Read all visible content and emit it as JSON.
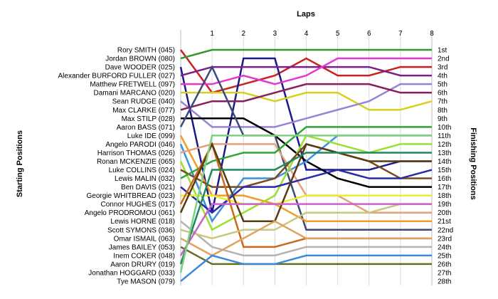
{
  "chart_data": {
    "type": "line",
    "title": "",
    "xlabel": "Laps",
    "ylabel_left": "Starting Positions",
    "ylabel_right": "Finishing Positions",
    "x": [
      0,
      1,
      2,
      3,
      4,
      5,
      6,
      7,
      8
    ],
    "lap_labels": [
      "1",
      "2",
      "3",
      "4",
      "5",
      "6",
      "7",
      "8"
    ],
    "position_labels": [
      "1st",
      "2nd",
      "3rd",
      "4th",
      "5th",
      "6th",
      "7th",
      "8th",
      "9th",
      "10th",
      "11th",
      "12th",
      "13th",
      "14th",
      "15th",
      "16th",
      "17th",
      "18th",
      "19th",
      "20th",
      "21st",
      "22nd",
      "23rd",
      "24th",
      "25th",
      "26th",
      "27th",
      "28th"
    ],
    "ylim": [
      1,
      28
    ],
    "y_inverted": true,
    "grid": true,
    "series": [
      {
        "name": "Rory SMITH (045)",
        "color": "#cc2020",
        "positions": [
          1,
          6,
          5,
          4,
          2,
          4,
          4,
          3,
          3
        ]
      },
      {
        "name": "Jordan BROWN (080)",
        "color": "#2e9a2e",
        "positions": [
          2,
          1,
          1,
          1,
          1,
          1,
          1,
          1,
          1
        ]
      },
      {
        "name": "Dave WOODER (025)",
        "color": "#1a1a8c",
        "positions": [
          3,
          20,
          2,
          2,
          15,
          15,
          15,
          14,
          14
        ]
      },
      {
        "name": "Alexander BURFORD FULLER (027)",
        "color": "#7a1f8a",
        "positions": [
          4,
          3,
          3,
          3,
          3,
          3,
          3,
          4,
          4
        ]
      },
      {
        "name": "Matthew FRETWELL (097)",
        "color": "#e23ad0",
        "positions": [
          5,
          5,
          4,
          5,
          4,
          2,
          2,
          2,
          2
        ]
      },
      {
        "name": "Damani MARCANO (020)",
        "color": "#d8d020",
        "positions": [
          6,
          6,
          6,
          7,
          6,
          6,
          8,
          8,
          7
        ]
      },
      {
        "name": "Sean RUDGE (040)",
        "color": "#9c82d6",
        "positions": [
          7,
          10,
          10,
          10,
          9,
          8,
          7,
          5,
          5
        ]
      },
      {
        "name": "Max CLARKE (077)",
        "color": "#8a1e5c",
        "positions": [
          8,
          7,
          7,
          6,
          5,
          5,
          5,
          6,
          6
        ]
      },
      {
        "name": "Max STILP (028)",
        "color": "#000000",
        "positions": [
          9,
          9,
          9,
          11,
          14,
          16,
          17,
          17,
          17
        ]
      },
      {
        "name": "Aaron BASS (071)",
        "color": "#3b4a78",
        "positions": [
          10,
          3,
          11,
          11,
          22,
          22,
          22,
          22,
          22
        ]
      },
      {
        "name": "Luke IDE (099)",
        "color": "#f09c2a",
        "positions": [
          11,
          18,
          18,
          19,
          21,
          21,
          21,
          21,
          21
        ]
      },
      {
        "name": "Angelo PARODI (046)",
        "color": "#3d8fe0",
        "positions": [
          12,
          21,
          16,
          16,
          14,
          11,
          11,
          11,
          11
        ]
      },
      {
        "name": "Harrison THOMAS (026)",
        "color": "#e6a07a",
        "positions": [
          13,
          12,
          12,
          12,
          18,
          18,
          20,
          20,
          20
        ]
      },
      {
        "name": "Ronan MCKENZIE (065)",
        "color": "#99e030",
        "positions": [
          14,
          22,
          20,
          18,
          11,
          12,
          13,
          12,
          12
        ]
      },
      {
        "name": "Luke COLLINS (024)",
        "color": "#7a4a1c",
        "positions": [
          15,
          17,
          17,
          16,
          12,
          13,
          14,
          16,
          16
        ]
      },
      {
        "name": "Lewis MALIN (032)",
        "color": "#2aa830",
        "positions": [
          16,
          14,
          13,
          13,
          10,
          10,
          10,
          10,
          10
        ]
      },
      {
        "name": "Ben DAVIS (021)",
        "color": "#2a2aa8",
        "positions": [
          17,
          20,
          17,
          17,
          16,
          15,
          16,
          16,
          15
        ]
      },
      {
        "name": "Georgie WHITBREAD (023)",
        "color": "#ecec30",
        "positions": [
          18,
          18,
          19,
          19,
          18,
          18,
          18,
          18,
          18
        ]
      },
      {
        "name": "Connor HUGHES (017)",
        "color": "#cc6a1a",
        "positions": [
          19,
          12,
          24,
          24,
          23,
          23,
          23,
          23,
          23
        ]
      },
      {
        "name": "Angelo PRODROMOU (061)",
        "color": "#5a3a10",
        "positions": [
          20,
          12,
          21,
          21,
          12,
          13,
          14,
          14,
          14
        ]
      },
      {
        "name": "Lewis HORNE (018)",
        "color": "#b3b3b3",
        "positions": [
          21,
          24,
          25,
          25,
          24,
          24,
          24,
          24,
          24
        ]
      },
      {
        "name": "Scott SYMONS (036)",
        "color": "#c8c880",
        "positions": [
          22,
          23,
          22,
          22,
          20,
          20,
          20,
          19,
          19
        ]
      },
      {
        "name": "Omar ISMAIL (063)",
        "color": "#e0a060",
        "positions": [
          23,
          25,
          23,
          21,
          23,
          23,
          23,
          23,
          23
        ]
      },
      {
        "name": "James BAILEY (053)",
        "color": "#6b6b1e",
        "positions": [
          24,
          26,
          26,
          26,
          26,
          26,
          26,
          26,
          26
        ]
      },
      {
        "name": "Inem COKER (048)",
        "color": "#cc60cc",
        "positions": [
          25,
          19,
          19,
          19,
          19,
          19,
          19,
          19,
          19
        ]
      },
      {
        "name": "Aaron DRURY (019)",
        "color": "#1e8a5c",
        "positions": [
          26,
          15,
          15,
          15,
          13,
          13,
          13,
          13,
          13
        ]
      },
      {
        "name": "Jonathan HOGGARD (033)",
        "color": "#80d080",
        "positions": [
          27,
          11,
          11,
          11,
          11,
          11,
          11,
          11,
          11
        ]
      },
      {
        "name": "Tye MASON (079)",
        "color": "#3a8ad8",
        "positions": [
          28,
          25,
          26,
          26,
          25,
          25,
          25,
          25,
          25
        ]
      }
    ],
    "legend": "none"
  }
}
